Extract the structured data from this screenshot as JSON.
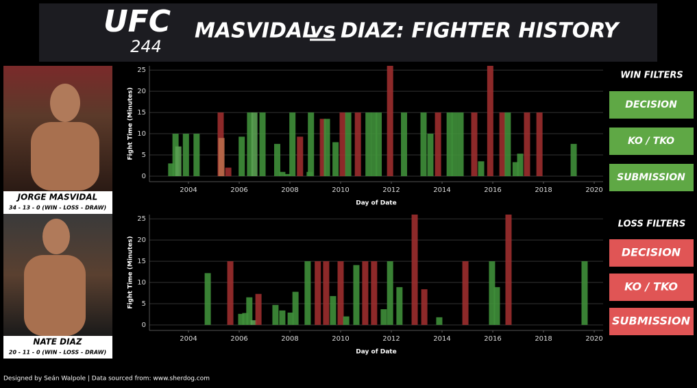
{
  "header": {
    "logo": "UFC",
    "logo_number": "244",
    "title_left": "MASVIDAL",
    "title_vs": "vs",
    "title_right": "DIAZ: FIGHTER HISTORY"
  },
  "fighters": [
    {
      "name": "JORGE MASVIDAL",
      "record": "34 - 13 - 0 (WIN - LOSS - DRAW)"
    },
    {
      "name": "NATE DIAZ",
      "record": "20 - 11 - 0 (WIN - LOSS - DRAW)"
    }
  ],
  "filters": [
    {
      "title": "WIN FILTERS",
      "color": "#5fa845",
      "buttons": [
        "DECISION",
        "KO / TKO",
        "SUBMISSION"
      ]
    },
    {
      "title": "LOSS FILTERS",
      "color": "#e05555",
      "buttons": [
        "DECISION",
        "KO / TKO",
        "SUBMISSION"
      ]
    }
  ],
  "footer": "Designed by Seán Walpole | Data sourced from: www.sherdog.com",
  "chart_data": [
    {
      "type": "bar",
      "xlabel": "Day of Date",
      "ylabel": "Fight Time (Minutes)",
      "grid": true,
      "xlim": [
        2002.46,
        2020.35
      ],
      "xticks": [
        2004,
        2006,
        2008,
        2010,
        2012,
        2014,
        2016,
        2018,
        2020
      ],
      "ylim": [
        -1.3,
        26
      ],
      "yticks": [
        0,
        5,
        10,
        15,
        20,
        25
      ],
      "x": [
        2003.32,
        2003.49,
        2003.6,
        2003.9,
        2004.32,
        2005.27,
        2005.3,
        2005.57,
        2006.1,
        2006.43,
        2006.6,
        2006.92,
        2007.5,
        2007.7,
        2007.9,
        2008.1,
        2008.4,
        2008.78,
        2008.83,
        2009.3,
        2009.46,
        2009.8,
        2010.08,
        2010.3,
        2010.68,
        2011.1,
        2011.32,
        2011.5,
        2011.95,
        2012.5,
        2013.27,
        2013.54,
        2013.84,
        2014.3,
        2014.49,
        2014.73,
        2015.27,
        2015.54,
        2015.9,
        2016.38,
        2016.59,
        2016.9,
        2017.08,
        2017.35,
        2017.84,
        2019.19
      ],
      "values": [
        3,
        10,
        7,
        10,
        10,
        15,
        9,
        2,
        9.3,
        15,
        15,
        15,
        7.6,
        1,
        0.5,
        15,
        9.3,
        1,
        15,
        13.5,
        13.5,
        8,
        15,
        15,
        15,
        15,
        15,
        15,
        26,
        15,
        15,
        10,
        15,
        15,
        15,
        15,
        15,
        3.5,
        26,
        15,
        15,
        3.3,
        5.3,
        15,
        15,
        7.6
      ],
      "colors": [
        "#3f8f3a",
        "#3f8f3a",
        "#5aa052",
        "#3f8f3a",
        "#3f8f3a",
        "#9c2e2e",
        "#b86a4a",
        "#9c2e2e",
        "#3f8f3a",
        "#3f8f3a",
        "#5aa052",
        "#3f8f3a",
        "#3f8f3a",
        "#3f8f3a",
        "#3f8f3a",
        "#3f8f3a",
        "#9c2e2e",
        "#3f8f3a",
        "#3f8f3a",
        "#9c2e2e",
        "#3f8f3a",
        "#3f8f3a",
        "#9c2e2e",
        "#3f8f3a",
        "#9c2e2e",
        "#3f8f3a",
        "#3f8f3a",
        "#3f8f3a",
        "#9c2e2e",
        "#3f8f3a",
        "#3f8f3a",
        "#3f8f3a",
        "#9c2e2e",
        "#3f8f3a",
        "#3f8f3a",
        "#3f8f3a",
        "#9c2e2e",
        "#3f8f3a",
        "#9c2e2e",
        "#9c2e2e",
        "#3f8f3a",
        "#3f8f3a",
        "#3f8f3a",
        "#9c2e2e",
        "#9c2e2e",
        "#3f8f3a"
      ]
    },
    {
      "type": "bar",
      "xlabel": "Day of Date",
      "ylabel": "Fight Time (Minutes)",
      "grid": true,
      "xlim": [
        2002.46,
        2020.35
      ],
      "xticks": [
        2004,
        2006,
        2008,
        2010,
        2012,
        2014,
        2016,
        2018,
        2020
      ],
      "ylim": [
        -1.3,
        26
      ],
      "yticks": [
        0,
        5,
        10,
        15,
        20,
        25
      ],
      "x": [
        2004.76,
        2005.65,
        2006.08,
        2006.24,
        2006.4,
        2006.57,
        2006.76,
        2007.43,
        2007.7,
        2008.03,
        2008.22,
        2008.7,
        2009.1,
        2009.43,
        2009.7,
        2010.0,
        2010.22,
        2010.62,
        2010.97,
        2011.32,
        2011.7,
        2011.95,
        2012.32,
        2012.92,
        2013.3,
        2013.89,
        2014.92,
        2015.97,
        2016.16,
        2016.62,
        2019.62
      ],
      "values": [
        12.2,
        15,
        2.6,
        2.8,
        6.5,
        1.1,
        7.3,
        4.7,
        3.4,
        2.9,
        7.8,
        15,
        15,
        15,
        6.8,
        15,
        2,
        14.1,
        15,
        15,
        3.7,
        15,
        8.9,
        26,
        8.4,
        1.8,
        15,
        15,
        8.9,
        26,
        15
      ],
      "colors": [
        "#3f8f3a",
        "#9c2e2e",
        "#3f8f3a",
        "#3f8f3a",
        "#3f8f3a",
        "#5aa052",
        "#9c2e2e",
        "#3f8f3a",
        "#3f8f3a",
        "#3f8f3a",
        "#3f8f3a",
        "#3f8f3a",
        "#9c2e2e",
        "#9c2e2e",
        "#3f8f3a",
        "#9c2e2e",
        "#3f8f3a",
        "#3f8f3a",
        "#9c2e2e",
        "#9c2e2e",
        "#3f8f3a",
        "#3f8f3a",
        "#3f8f3a",
        "#9c2e2e",
        "#9c2e2e",
        "#3f8f3a",
        "#9c2e2e",
        "#3f8f3a",
        "#3f8f3a",
        "#9c2e2e",
        "#3f8f3a"
      ]
    }
  ]
}
